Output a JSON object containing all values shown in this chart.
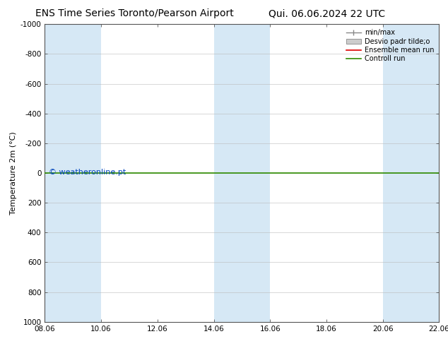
{
  "title_left": "ENS Time Series Toronto/Pearson Airport",
  "title_right": "Qui. 06.06.2024 22 UTC",
  "ylabel": "Temperature 2m (°C)",
  "yticks": [
    -1000,
    -800,
    -600,
    -400,
    -200,
    0,
    200,
    400,
    600,
    800,
    1000
  ],
  "ylim": [
    1000,
    -1000
  ],
  "xtick_labels": [
    "08.06",
    "10.06",
    "12.06",
    "14.06",
    "16.06",
    "18.06",
    "20.06",
    "22.06"
  ],
  "bg_color": "#ffffff",
  "plot_bg_color": "#ffffff",
  "shade_color": "#d6e8f5",
  "green_line_y": 0,
  "green_line_color": "#2e8b00",
  "red_line_color": "#dd0000",
  "watermark_text": "© weatheronline.pt",
  "watermark_color": "#0044bb",
  "watermark_fontsize": 8,
  "legend_labels": [
    "min/max",
    "Desvio padr tilde;o",
    "Ensemble mean run",
    "Controll run"
  ],
  "title_fontsize": 10,
  "axis_label_fontsize": 8,
  "tick_fontsize": 7.5
}
